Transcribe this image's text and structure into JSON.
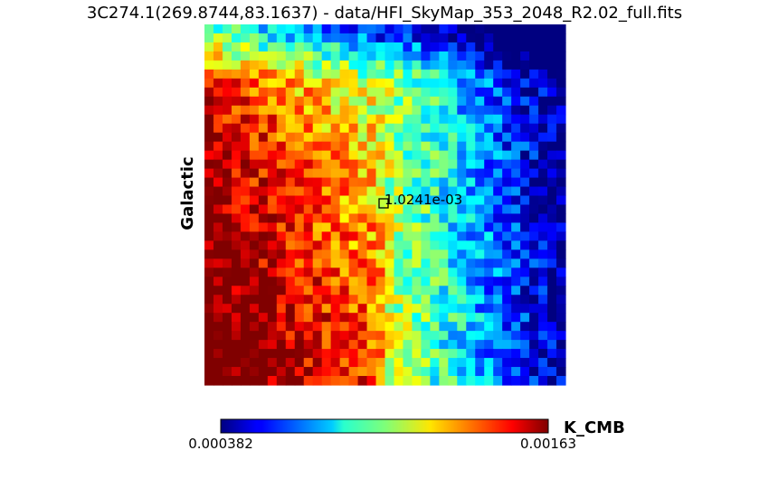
{
  "chart_data": {
    "type": "heatmap",
    "title": "3C274.1(269.8744,83.1637) - data/HFI_SkyMap_353_2048_R2.02_full.fits",
    "ylabel": "Galactic",
    "colormap": "jet",
    "colorbar": {
      "min": 0.000382,
      "max": 0.00163,
      "min_label": "0.000382",
      "max_label": "0.00163",
      "unit": "K_CMB",
      "placement": "bottom"
    },
    "marker": {
      "shape": "square",
      "value": 0.0010241,
      "label": "1.0241e-03"
    },
    "grid": false
  }
}
